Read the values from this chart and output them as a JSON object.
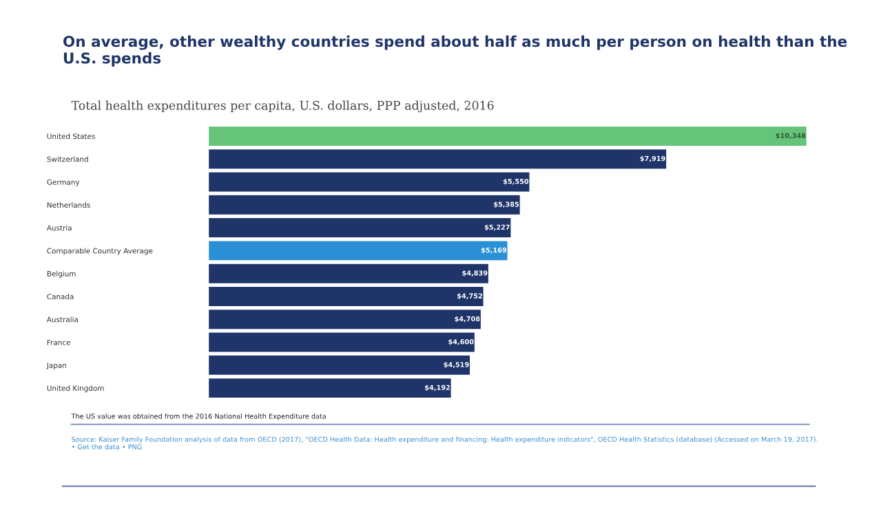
{
  "chart_data": {
    "type": "bar",
    "orientation": "horizontal",
    "title": "On average, other wealthy countries spend about half as much per person on health than the U.S. spends",
    "subtitle": "Total health expenditures per capita, U.S. dollars, PPP adjusted, 2016",
    "categories": [
      "United States",
      "Switzerland",
      "Germany",
      "Netherlands",
      "Austria",
      "Comparable Country Average",
      "Belgium",
      "Canada",
      "Australia",
      "France",
      "Japan",
      "United Kingdom"
    ],
    "values": [
      10348,
      7919,
      5550,
      5385,
      5227,
      5169,
      4839,
      4752,
      4708,
      4600,
      4519,
      4192
    ],
    "colors": [
      "#66c47a",
      "#1f3468",
      "#1f3468",
      "#1f3468",
      "#1f3468",
      "#2b8fd6",
      "#1f3468",
      "#1f3468",
      "#1f3468",
      "#1f3468",
      "#1f3468",
      "#1f3468"
    ],
    "value_labels": [
      "$10,348",
      "$7,919",
      "$5,550",
      "$5,385",
      "$5,227",
      "$5,169",
      "$4,839",
      "$4,752",
      "$4,708",
      "$4,600",
      "$4,519",
      "$4,192"
    ],
    "tick_labels": "y",
    "grid": false,
    "legend": false,
    "annotations": [
      "The US value was obtained from the 2016 National Health Expenditure data",
      "Source: Kaiser Family Foundation analysis of data from OECD (2017), \"OECD Health Data: Health expenditure and financing: Health expenditure indicators\", OECD Health Statistics (database) (Accessed on March 19, 2017). • Get the data • PNG"
    ]
  }
}
